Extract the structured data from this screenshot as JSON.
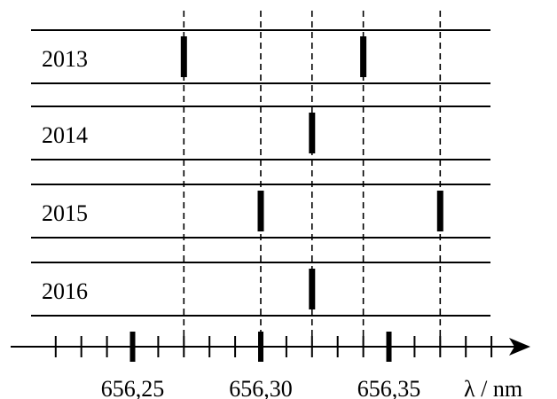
{
  "chart_data": {
    "type": "diagram",
    "axis": {
      "label": "λ / nm",
      "major_ticks": [
        {
          "value": 656.25,
          "label": "656,25"
        },
        {
          "value": 656.3,
          "label": "656,30"
        },
        {
          "value": 656.35,
          "label": "656,35"
        }
      ],
      "minor_step": 0.01,
      "range": [
        656.21,
        656.395
      ]
    },
    "rows": [
      {
        "year": "2013",
        "lines": [
          656.27,
          656.34
        ]
      },
      {
        "year": "2014",
        "lines": [
          656.32
        ]
      },
      {
        "year": "2015",
        "lines": [
          656.3,
          656.37
        ]
      },
      {
        "year": "2016",
        "lines": [
          656.32
        ]
      }
    ],
    "reference_lines": [
      656.27,
      656.3,
      656.32,
      656.34,
      656.37
    ]
  }
}
